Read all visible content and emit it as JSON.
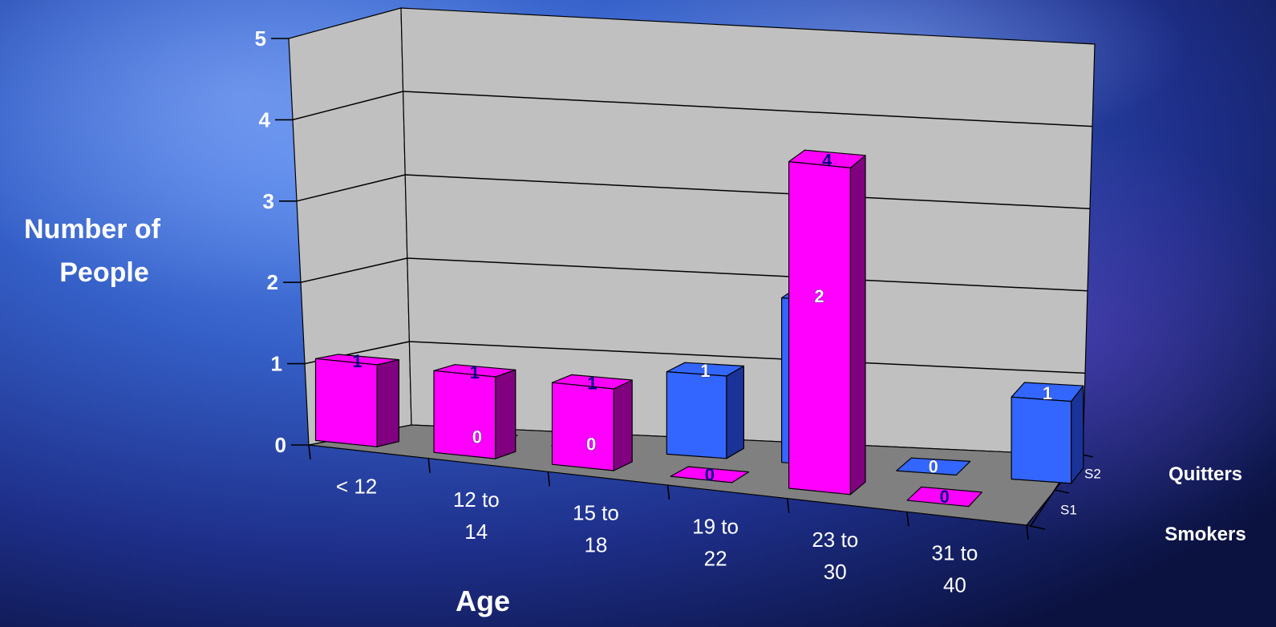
{
  "colors": {
    "smokers": "#ff00ff",
    "smokers_side": "#800080",
    "quitters": "#3366ff",
    "quitters_side": "#1a3399",
    "wall": "#c0c0c0",
    "floor": "#808080",
    "text": "#ffffff",
    "data_label_dark": "#000080"
  },
  "chart_data": {
    "type": "bar",
    "subtype": "3d-column",
    "categories": [
      "< 12",
      "12 to 14",
      "15 to 18",
      "19 to 22",
      "23 to 30",
      "31 to 40"
    ],
    "series": [
      {
        "name": "Smokers",
        "depth_label": "S1",
        "values": [
          1,
          1,
          1,
          0,
          4,
          0
        ]
      },
      {
        "name": "Quitters",
        "depth_label": "S2",
        "values": [
          0,
          0,
          1,
          2,
          0,
          1
        ]
      }
    ],
    "ylabel": "Number of People",
    "xlabel": "Age",
    "ylim": [
      0,
      5
    ],
    "yticks": [
      0,
      1,
      2,
      3,
      4,
      5
    ],
    "grid": true,
    "legend": "right"
  }
}
